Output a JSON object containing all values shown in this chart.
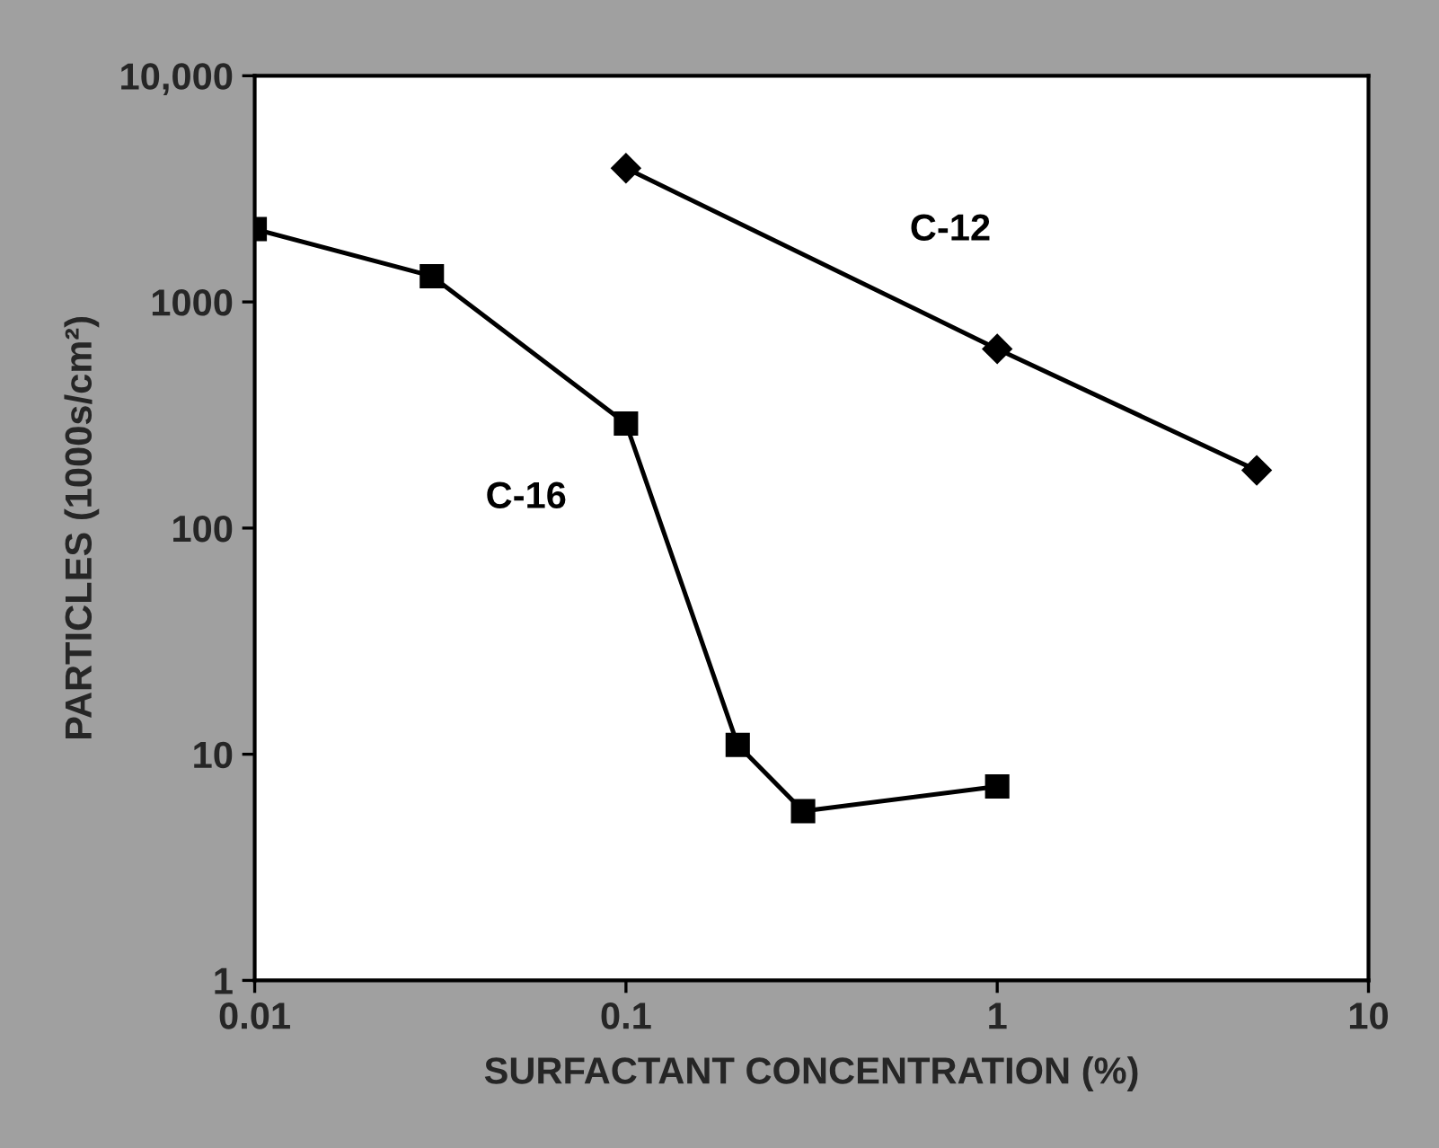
{
  "chart_data": {
    "type": "line",
    "xlabel": "SURFACTANT CONCENTRATION (%)",
    "ylabel": "PARTICLES (1000s/cm²)",
    "log": "xy",
    "xlim": [
      0.01,
      10
    ],
    "xticks": [
      0.01,
      0.1,
      1,
      10
    ],
    "ylim": [
      1,
      10000
    ],
    "yticks": [
      1,
      10,
      100,
      1000,
      {
        "value": 10000,
        "label": "10,000"
      }
    ],
    "grid": false,
    "legend": false,
    "line_style": "solid",
    "series": [
      {
        "name": "C-16",
        "color": "#000000",
        "marker": "square",
        "x": [
          0.01,
          0.03,
          0.1,
          0.2,
          0.3,
          1
        ],
        "values": [
          2100,
          1300,
          290,
          11,
          5.6,
          7.2
        ]
      },
      {
        "name": "C-12",
        "color": "#000000",
        "marker": "diamond",
        "x": [
          0.1,
          1,
          5
        ],
        "values": [
          3900,
          620,
          180
        ]
      }
    ]
  }
}
